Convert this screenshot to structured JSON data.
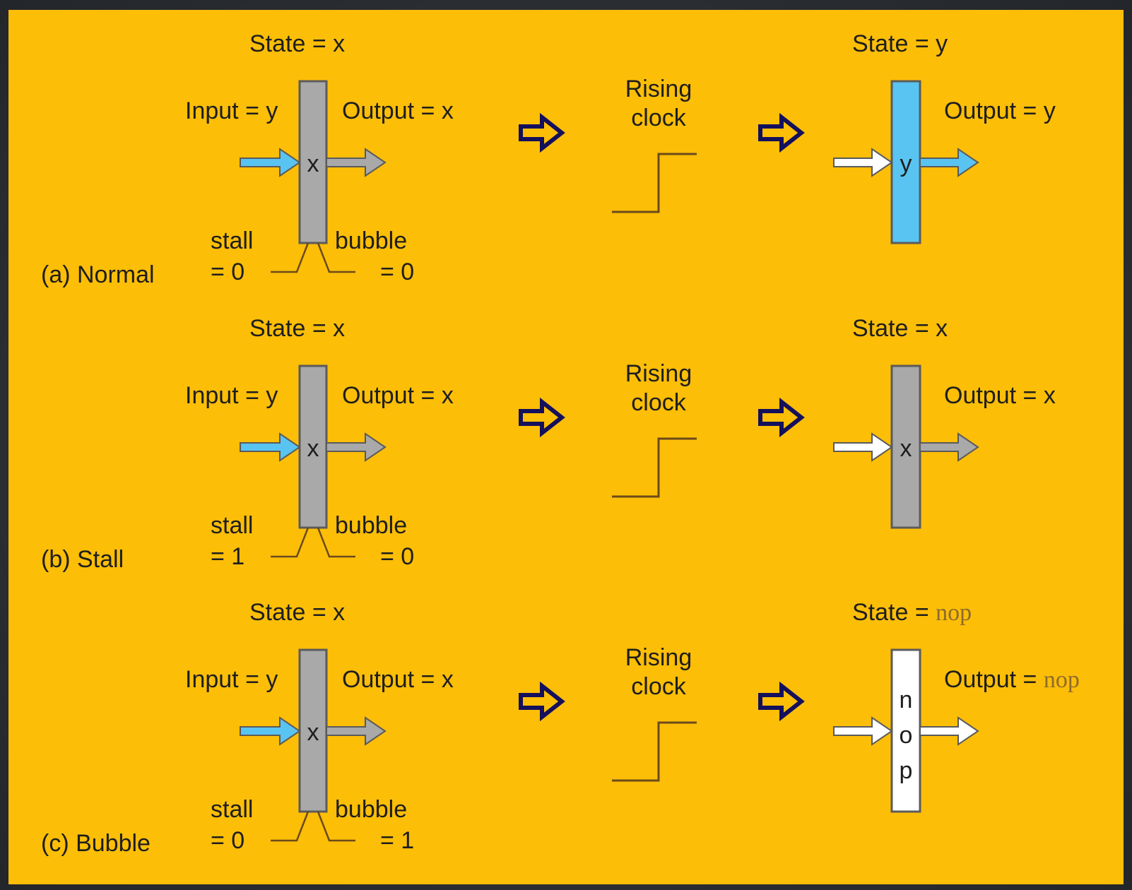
{
  "colors": {
    "background": "#FCBE07",
    "register_gray": "#A9A9A9",
    "register_blue": "#59C4F2",
    "register_white": "#FFFFFF",
    "arrow_gray": "#A9A9A9",
    "arrow_blue": "#59C4F2",
    "arrow_white": "#FFFFFF",
    "step_arrow": "#14105C",
    "nop_text": "#8E6B2C"
  },
  "eq": "=",
  "rising_clock": [
    "Rising",
    "clock"
  ],
  "rows": [
    {
      "caption": "(a) Normal",
      "before": {
        "state_label": "State = x",
        "input_label": "Input = y",
        "output_label": "Output = x",
        "register_value": "x",
        "stall_label": "stall",
        "stall_value": "= 0",
        "bubble_label": "bubble",
        "bubble_value": "= 0"
      },
      "after": {
        "state_prefix": "State",
        "state_value": "y",
        "output_prefix": "Output",
        "output_value": "y",
        "register_value": "y",
        "register_color": "#59C4F2",
        "in_arrow_color": "#FFFFFF",
        "out_arrow_color": "#59C4F2",
        "value_style": "sans",
        "vertical": false
      }
    },
    {
      "caption": "(b) Stall",
      "before": {
        "state_label": "State = x",
        "input_label": "Input = y",
        "output_label": "Output = x",
        "register_value": "x",
        "stall_label": "stall",
        "stall_value": "= 1",
        "bubble_label": "bubble",
        "bubble_value": "= 0"
      },
      "after": {
        "state_prefix": "State",
        "state_value": "x",
        "output_prefix": "Output",
        "output_value": "x",
        "register_value": "x",
        "register_color": "#A9A9A9",
        "in_arrow_color": "#FFFFFF",
        "out_arrow_color": "#A9A9A9",
        "value_style": "sans",
        "vertical": false
      }
    },
    {
      "caption": "(c) Bubble",
      "before": {
        "state_label": "State = x",
        "input_label": "Input = y",
        "output_label": "Output = x",
        "register_value": "x",
        "stall_label": "stall",
        "stall_value": "= 0",
        "bubble_label": "bubble",
        "bubble_value": "= 1"
      },
      "after": {
        "state_prefix": "State",
        "state_value": "nop",
        "output_prefix": "Output",
        "output_value": "nop",
        "register_value": "nop",
        "register_color": "#FFFFFF",
        "in_arrow_color": "#FFFFFF",
        "out_arrow_color": "#FFFFFF",
        "value_style": "serif",
        "vertical": true
      }
    }
  ]
}
